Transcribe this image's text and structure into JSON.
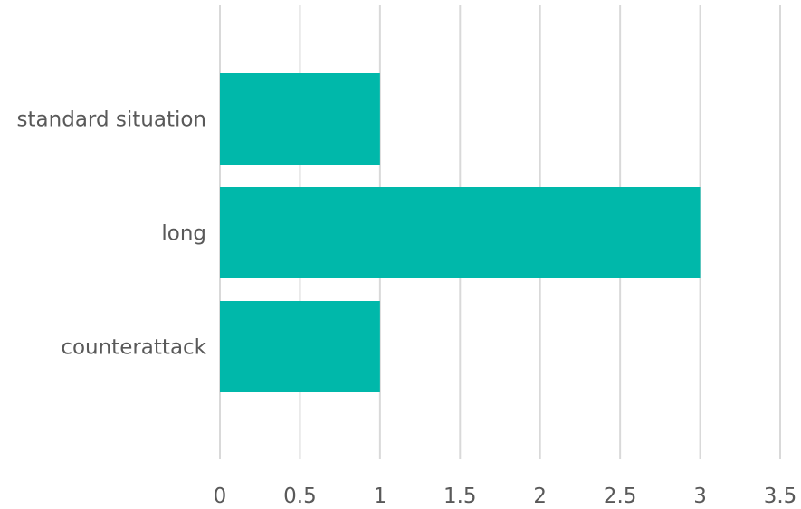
{
  "chart_data": {
    "type": "bar",
    "orientation": "horizontal",
    "categories": [
      "standard situation",
      "long",
      "counterattack"
    ],
    "values": [
      1,
      3,
      1
    ],
    "xlim": [
      0,
      3.5
    ],
    "x_ticks": [
      0,
      0.5,
      1,
      1.5,
      2,
      2.5,
      3,
      3.5
    ],
    "x_tick_labels": [
      "0",
      "0.5",
      "1",
      "1.5",
      "2",
      "2.5",
      "3",
      "3.5"
    ],
    "grid": "vertical",
    "title": "",
    "xlabel": "",
    "ylabel": "",
    "bar_color": "#00b8aa",
    "grid_color": "#d9d9d9",
    "text_color": "#595959"
  }
}
